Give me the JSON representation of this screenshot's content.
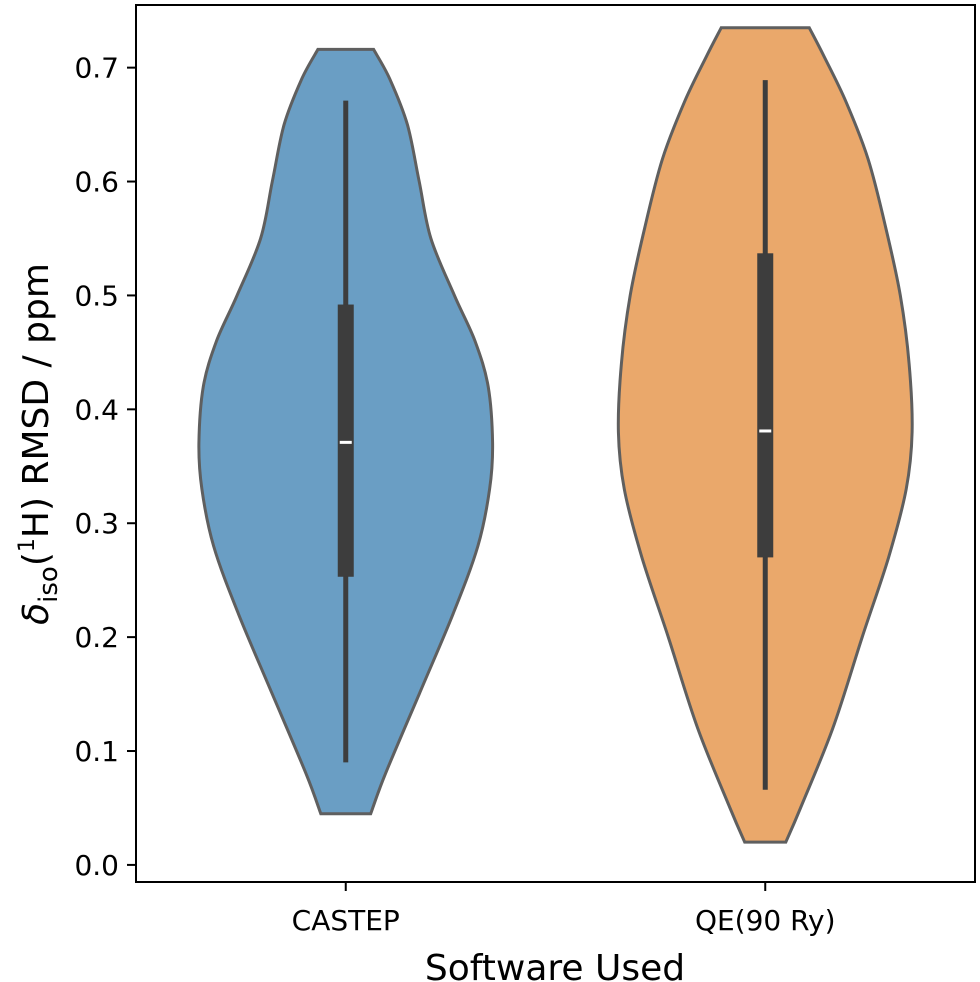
{
  "chart_data": {
    "type": "violin",
    "categories": [
      "CASTEP",
      "QE(90 Ry)"
    ],
    "colors": [
      "#6a9ec4",
      "#eaa86b"
    ],
    "xlabel": "Software Used",
    "ylabel": {
      "symbol": "δ",
      "subscript": "iso",
      "open": "(",
      "superscript": "1",
      "rest": "H) RMSD / ppm"
    },
    "ylim": [
      -0.015,
      0.755
    ],
    "yticks": [
      "0.0",
      "0.1",
      "0.2",
      "0.3",
      "0.4",
      "0.5",
      "0.6",
      "0.7"
    ],
    "grid": false,
    "series": [
      {
        "category": "CASTEP",
        "min": 0.045,
        "max": 0.716,
        "whisker_low": 0.09,
        "q1": 0.253,
        "median": 0.371,
        "q3": 0.492,
        "whisker_high": 0.671,
        "density": [
          [
            0.045,
            0.17
          ],
          [
            0.08,
            0.27
          ],
          [
            0.15,
            0.5
          ],
          [
            0.22,
            0.73
          ],
          [
            0.28,
            0.9
          ],
          [
            0.33,
            0.98
          ],
          [
            0.37,
            1.0
          ],
          [
            0.42,
            0.97
          ],
          [
            0.46,
            0.88
          ],
          [
            0.5,
            0.74
          ],
          [
            0.55,
            0.58
          ],
          [
            0.6,
            0.5
          ],
          [
            0.65,
            0.42
          ],
          [
            0.69,
            0.3
          ],
          [
            0.716,
            0.19
          ]
        ]
      },
      {
        "category": "QE(90 Ry)",
        "min": 0.02,
        "max": 0.735,
        "whisker_low": 0.066,
        "q1": 0.27,
        "median": 0.381,
        "q3": 0.537,
        "whisker_high": 0.689,
        "density": [
          [
            0.02,
            0.14
          ],
          [
            0.05,
            0.24
          ],
          [
            0.12,
            0.46
          ],
          [
            0.2,
            0.66
          ],
          [
            0.27,
            0.84
          ],
          [
            0.33,
            0.96
          ],
          [
            0.38,
            1.0
          ],
          [
            0.44,
            0.98
          ],
          [
            0.5,
            0.92
          ],
          [
            0.56,
            0.82
          ],
          [
            0.62,
            0.7
          ],
          [
            0.67,
            0.55
          ],
          [
            0.71,
            0.4
          ],
          [
            0.735,
            0.3
          ]
        ]
      }
    ]
  }
}
